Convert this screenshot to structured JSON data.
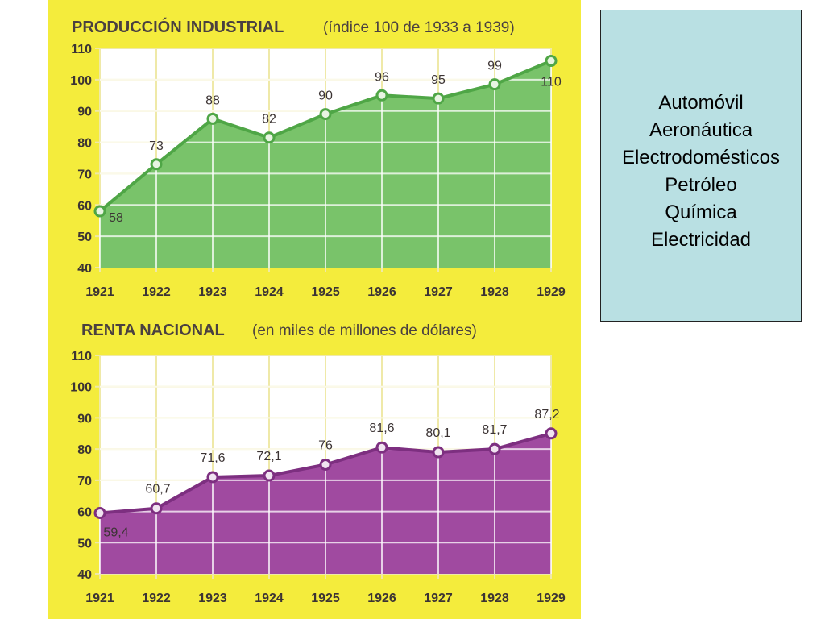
{
  "chart_data": [
    {
      "type": "area",
      "title": "PRODUCCIÓN INDUSTRIAL",
      "subtitle": "(índice 100 de 1933 a 1939)",
      "categories": [
        "1921",
        "1922",
        "1923",
        "1924",
        "1925",
        "1926",
        "1927",
        "1928",
        "1929"
      ],
      "series": [
        {
          "values": [
            58,
            73,
            88,
            82,
            90,
            96,
            95,
            99,
            110
          ],
          "plotted_values": [
            58,
            73,
            87.5,
            81.5,
            89,
            95,
            94,
            98.5,
            106
          ],
          "data_labels": [
            "58",
            "73",
            "88",
            "82",
            "90",
            "96",
            "95",
            "99",
            "110"
          ]
        }
      ],
      "y_ticks": [
        "40",
        "50",
        "60",
        "70",
        "80",
        "90",
        "100",
        "110"
      ],
      "ylim": [
        40,
        110
      ],
      "grid": true,
      "colors": {
        "fill": "#79c36a",
        "line": "#4fa646",
        "plot_bg": "#ffffff",
        "grid": "#efe9a8",
        "marker_fill": "#e8f4e2"
      }
    },
    {
      "type": "area",
      "title": "RENTA NACIONAL",
      "subtitle": "(en miles de millones de dólares)",
      "categories": [
        "1921",
        "1922",
        "1923",
        "1924",
        "1925",
        "1926",
        "1927",
        "1928",
        "1929"
      ],
      "series": [
        {
          "values": [
            59.4,
            60.7,
            71.6,
            72.1,
            76,
            81.6,
            80.1,
            81.7,
            87.2
          ],
          "plotted_values": [
            59.5,
            61,
            71,
            71.5,
            75,
            80.5,
            79,
            80,
            85
          ],
          "data_labels": [
            "59,4",
            "60,7",
            "71,6",
            "72,1",
            "76",
            "81,6",
            "80,1",
            "81,7",
            "87,2"
          ]
        }
      ],
      "y_ticks": [
        "40",
        "50",
        "60",
        "70",
        "80",
        "90",
        "100",
        "110"
      ],
      "ylim": [
        40,
        110
      ],
      "grid": true,
      "colors": {
        "fill": "#a04aa0",
        "line": "#7d2f80",
        "plot_bg": "#ffffff",
        "grid": "#efe9a8",
        "marker_fill": "#f1e4f1"
      }
    }
  ],
  "side_list": {
    "items": [
      "Automóvil",
      "Aeronáutica",
      "Electrodomésticos",
      "Petróleo",
      "Química",
      "Electricidad"
    ]
  }
}
